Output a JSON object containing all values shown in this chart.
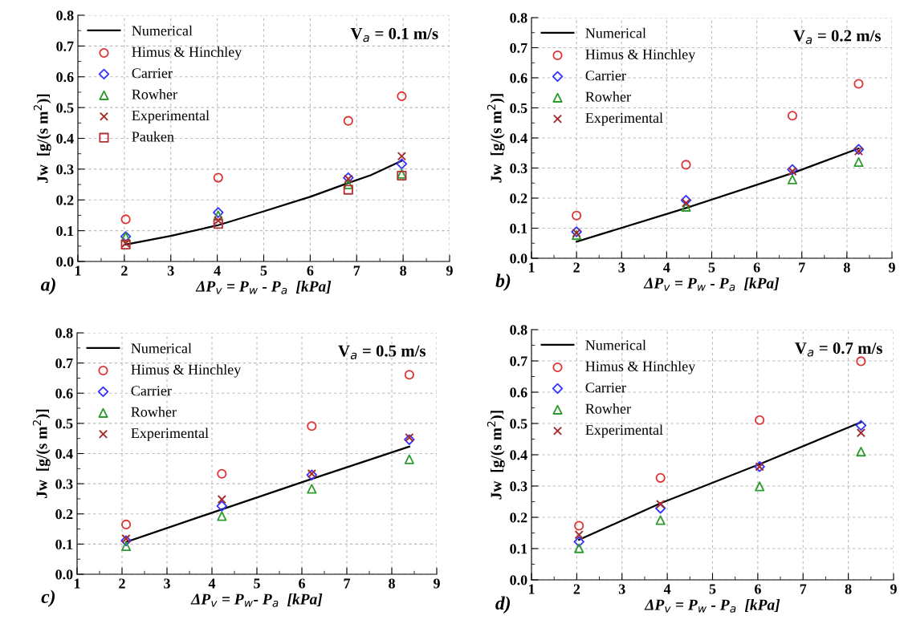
{
  "chart_data": [
    {
      "type": "scatter",
      "xlabel": "ΔP$_{v}$ = P$_{w}$ - P$_{a}$  [kPa]",
      "ylabel": "Jw  [g/(s m$^{2}$)]",
      "annotations": [
        "V$_{a}$ = 0.1 m/s",
        "a)"
      ],
      "grid": true,
      "legend": "top left",
      "xlim": [
        1,
        9
      ],
      "ylim": [
        0,
        0.8
      ],
      "xticks": [
        1,
        2,
        3,
        4,
        5,
        6,
        7,
        8,
        9
      ],
      "yticks": [
        {
          "value": 0,
          "label": "0.0"
        },
        {
          "value": 0.1,
          "label": "0.1"
        },
        {
          "value": 0.2,
          "label": "0.2"
        },
        {
          "value": 0.3,
          "label": "0.3"
        },
        {
          "value": 0.4,
          "label": "0.4"
        },
        {
          "value": 0.5,
          "label": "0.5"
        },
        {
          "value": 0.6,
          "label": "0.6"
        },
        {
          "value": 0.7,
          "label": "0.7"
        },
        {
          "value": 0.8,
          "label": "0.8"
        }
      ],
      "x": [
        2.03,
        4.02,
        6.82,
        7.97
      ],
      "series": [
        {
          "name": "Numerical",
          "type": "line",
          "color": "#000000",
          "line_style": "solid",
          "marker": "none",
          "x": [
            2.03,
            3,
            4.02,
            5,
            6,
            6.82,
            7.3,
            7.97
          ],
          "values": [
            0.055,
            0.083,
            0.118,
            0.163,
            0.21,
            0.255,
            0.28,
            0.327
          ]
        },
        {
          "name": "Himus & Hinchley",
          "color": "#e03030",
          "marker": "circle",
          "values": [
            0.137,
            0.272,
            0.457,
            0.537
          ]
        },
        {
          "name": "Carrier",
          "color": "#3333ff",
          "marker": "diamond",
          "values": [
            0.081,
            0.159,
            0.272,
            0.317
          ]
        },
        {
          "name": "Rowher",
          "color": "#2e9b2e",
          "marker": "triangle",
          "values": [
            0.08,
            0.15,
            0.25,
            0.285
          ]
        },
        {
          "name": "Experimental",
          "color": "#a52a2a",
          "marker": "cross",
          "values": [
            0.059,
            0.133,
            0.268,
            0.342
          ]
        },
        {
          "name": "Pauken",
          "color": "#b03030",
          "marker": "square",
          "values": [
            0.055,
            0.122,
            0.233,
            0.279
          ]
        }
      ]
    },
    {
      "type": "scatter",
      "xlabel": "ΔP$_{v}$ = P$_{w}$ - P$_{a}$  [kPa]",
      "ylabel": "Jw  [g/(s m$^{2}$)]",
      "annotations": [
        "V$_{a}$ = 0.2 m/s",
        "b)"
      ],
      "grid": true,
      "legend": "top left",
      "xlim": [
        1,
        9
      ],
      "ylim": [
        0,
        0.8
      ],
      "xticks": [
        1,
        2,
        3,
        4,
        5,
        6,
        7,
        8,
        9
      ],
      "yticks": [
        {
          "value": 0,
          "label": "0.0"
        },
        {
          "value": 0.1,
          "label": "0.1"
        },
        {
          "value": 0.2,
          "label": "0.2"
        },
        {
          "value": 0.3,
          "label": "0.3"
        },
        {
          "value": 0.4,
          "label": "0.4"
        },
        {
          "value": 0.5,
          "label": "0.5"
        },
        {
          "value": 0.6,
          "label": "0.6"
        },
        {
          "value": 0.7,
          "label": "0.7"
        },
        {
          "value": 0.8,
          "label": "0.8"
        }
      ],
      "x": [
        2.0,
        4.43,
        6.79,
        8.26
      ],
      "series": [
        {
          "name": "Numerical",
          "type": "line",
          "color": "#000000",
          "line_style": "solid",
          "marker": "none",
          "x": [
            2.0,
            4.43,
            6.79,
            8.26
          ],
          "values": [
            0.055,
            0.167,
            0.283,
            0.365
          ]
        },
        {
          "name": "Himus & Hinchley",
          "color": "#e03030",
          "marker": "circle",
          "values": [
            0.142,
            0.311,
            0.474,
            0.58
          ]
        },
        {
          "name": "Carrier",
          "color": "#3333ff",
          "marker": "diamond",
          "values": [
            0.088,
            0.193,
            0.295,
            0.362
          ]
        },
        {
          "name": "Rowher",
          "color": "#2e9b2e",
          "marker": "triangle",
          "values": [
            0.077,
            0.171,
            0.262,
            0.32
          ]
        },
        {
          "name": "Experimental",
          "color": "#a52a2a",
          "marker": "cross",
          "values": [
            0.084,
            0.184,
            0.289,
            0.356
          ]
        }
      ]
    },
    {
      "type": "scatter",
      "xlabel": "ΔP$_{v}$ = P$_{w}$- P$_{a}$  [kPa]",
      "ylabel": "Jw  [g/(s m$^{2}$)]",
      "annotations": [
        "V$_{a}$ = 0.5 m/s",
        "c)"
      ],
      "grid": true,
      "legend": "top left",
      "xlim": [
        1,
        9
      ],
      "ylim": [
        0,
        0.8
      ],
      "xticks": [
        1,
        2,
        3,
        4,
        5,
        6,
        7,
        8,
        9
      ],
      "yticks": [
        {
          "value": 0,
          "label": "0.0"
        },
        {
          "value": 0.1,
          "label": "0.1"
        },
        {
          "value": 0.2,
          "label": "0.2"
        },
        {
          "value": 0.3,
          "label": "0.3"
        },
        {
          "value": 0.4,
          "label": "0.4"
        },
        {
          "value": 0.5,
          "label": "0.5"
        },
        {
          "value": 0.6,
          "label": "0.6"
        },
        {
          "value": 0.7,
          "label": "0.7"
        },
        {
          "value": 0.8,
          "label": "0.8"
        }
      ],
      "x": [
        2.09,
        4.22,
        6.22,
        8.39
      ],
      "series": [
        {
          "name": "Numerical",
          "type": "line",
          "color": "#000000",
          "line_style": "solid",
          "marker": "none",
          "x": [
            2.09,
            4.22,
            6.22,
            8.39
          ],
          "values": [
            0.107,
            0.215,
            0.316,
            0.423
          ]
        },
        {
          "name": "Himus & Hinchley",
          "color": "#e03030",
          "marker": "circle",
          "values": [
            0.165,
            0.333,
            0.491,
            0.661
          ]
        },
        {
          "name": "Carrier",
          "color": "#3333ff",
          "marker": "diamond",
          "values": [
            0.111,
            0.226,
            0.329,
            0.446
          ]
        },
        {
          "name": "Rowher",
          "color": "#2e9b2e",
          "marker": "triangle",
          "values": [
            0.093,
            0.193,
            0.283,
            0.381
          ]
        },
        {
          "name": "Experimental",
          "color": "#a52a2a",
          "marker": "cross",
          "values": [
            0.118,
            0.248,
            0.333,
            0.453
          ]
        }
      ]
    },
    {
      "type": "scatter",
      "xlabel": "ΔP$_{v}$ = P$_{w}$ - P$_{a}$  [kPa]",
      "ylabel": "Jw  [g/(s m$^{2}$)]",
      "annotations": [
        "V$_{a}$ = 0.7 m/s",
        "d)"
      ],
      "grid": true,
      "legend": "top left",
      "xlim": [
        1,
        9
      ],
      "ylim": [
        0,
        0.8
      ],
      "xticks": [
        1,
        2,
        3,
        4,
        5,
        6,
        7,
        8,
        9
      ],
      "yticks": [
        {
          "value": 0,
          "label": "0.0"
        },
        {
          "value": 0.1,
          "label": "0.1"
        },
        {
          "value": 0.2,
          "label": "0.2"
        },
        {
          "value": 0.3,
          "label": "0.3"
        },
        {
          "value": 0.4,
          "label": "0.4"
        },
        {
          "value": 0.5,
          "label": "0.5"
        },
        {
          "value": 0.6,
          "label": "0.6"
        },
        {
          "value": 0.7,
          "label": "0.7"
        },
        {
          "value": 0.8,
          "label": "0.8"
        }
      ],
      "x": [
        2.05,
        3.85,
        6.04,
        8.28
      ],
      "series": [
        {
          "name": "Numerical",
          "type": "line",
          "color": "#000000",
          "line_style": "solid",
          "marker": "none",
          "x": [
            2.05,
            3.85,
            6.04,
            8.28
          ],
          "values": [
            0.128,
            0.245,
            0.37,
            0.504
          ]
        },
        {
          "name": "Himus & Hinchley",
          "color": "#e03030",
          "marker": "circle",
          "values": [
            0.173,
            0.326,
            0.511,
            0.699
          ]
        },
        {
          "name": "Carrier",
          "color": "#3333ff",
          "marker": "diamond",
          "values": [
            0.122,
            0.229,
            0.362,
            0.494
          ]
        },
        {
          "name": "Rowher",
          "color": "#2e9b2e",
          "marker": "triangle",
          "values": [
            0.101,
            0.191,
            0.299,
            0.41
          ]
        },
        {
          "name": "Experimental",
          "color": "#a52a2a",
          "marker": "cross",
          "values": [
            0.144,
            0.242,
            0.362,
            0.47
          ]
        }
      ]
    }
  ]
}
